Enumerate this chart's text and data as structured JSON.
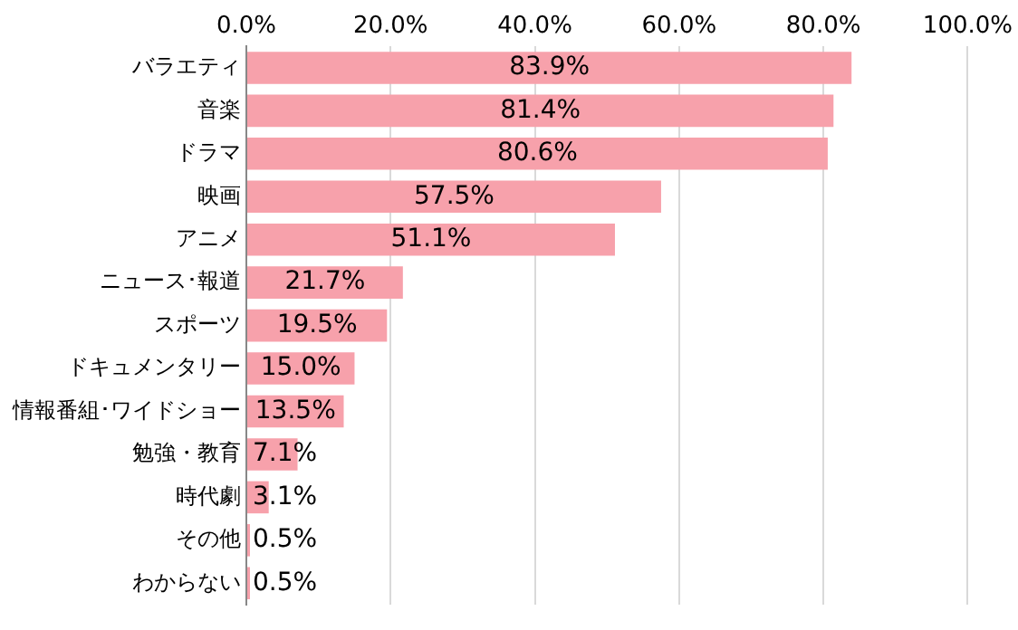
{
  "chart_data": {
    "type": "bar",
    "orientation": "horizontal",
    "categories": [
      "バラエティ",
      "音楽",
      "ドラマ",
      "映画",
      "アニメ",
      "ニュース･報道",
      "スポーツ",
      "ドキュメンタリー",
      "情報番組･ワイドショー",
      "勉強・教育",
      "時代劇",
      "その他",
      "わからない"
    ],
    "values": [
      83.9,
      81.4,
      80.6,
      57.5,
      51.1,
      21.7,
      19.5,
      15.0,
      13.5,
      7.1,
      3.1,
      0.5,
      0.5
    ],
    "value_labels": [
      "83.9%",
      "81.4%",
      "80.6%",
      "57.5%",
      "51.1%",
      "21.7%",
      "19.5%",
      "15.0%",
      "13.5%",
      "7.1%",
      "3.1%",
      "0.5%",
      "0.5%"
    ],
    "color": "#f7a1ab",
    "xlim": [
      0,
      100
    ],
    "xticks": [
      {
        "value": 0,
        "label": "0.0%"
      },
      {
        "value": 20,
        "label": "20.0%"
      },
      {
        "value": 40,
        "label": "40.0%"
      },
      {
        "value": 60,
        "label": "60.0%"
      },
      {
        "value": 80,
        "label": "80.0%"
      },
      {
        "value": 100,
        "label": "100.0%"
      }
    ],
    "grid": "x",
    "legend": false
  }
}
